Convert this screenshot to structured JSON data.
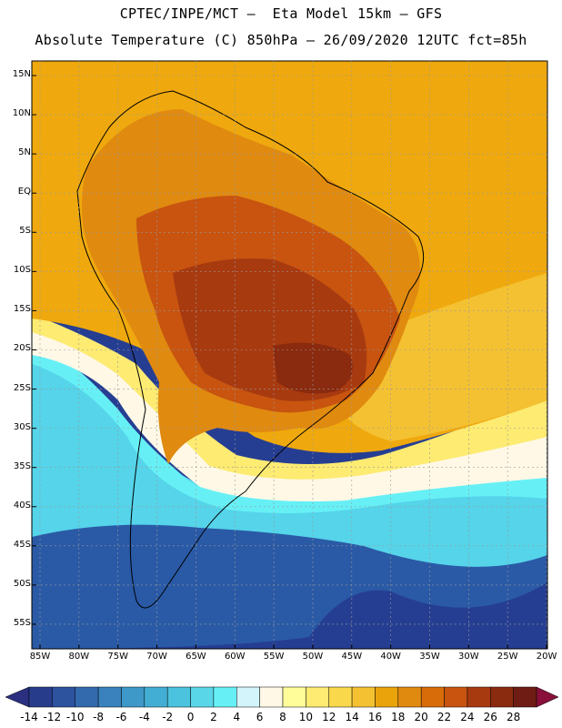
{
  "title_line1": "CPTEC/INPE/MCT –  Eta Model 15km – GFS",
  "title_line2": "Absolute Temperature (C) 850hPa – 26/09/2020 12UTC fct=85h",
  "lat_labels": [
    "15N",
    "10N",
    "5N",
    "EQ",
    "5S",
    "10S",
    "15S",
    "20S",
    "25S",
    "30S",
    "35S",
    "40S",
    "45S",
    "50S",
    "55S"
  ],
  "lon_labels": [
    "85W",
    "80W",
    "75W",
    "70W",
    "65W",
    "60W",
    "55W",
    "50W",
    "45W",
    "40W",
    "35W",
    "30W",
    "25W",
    "20W"
  ],
  "colorbar": {
    "labels": [
      "-14",
      "-12",
      "-10",
      "-8",
      "-6",
      "-4",
      "-2",
      "0",
      "2",
      "4",
      "6",
      "8",
      "10",
      "12",
      "14",
      "16",
      "18",
      "20",
      "22",
      "24",
      "26",
      "28"
    ],
    "colors": [
      "#283c8c",
      "#2d529e",
      "#336aad",
      "#3a82bd",
      "#3e98c8",
      "#42aed3",
      "#4bc3de",
      "#5ad6e9",
      "#66f0f6",
      "#d2f4fa",
      "#fff8e6",
      "#fffc9a",
      "#fdeb72",
      "#f9d84c",
      "#f4c132",
      "#eba30c",
      "#e08a10",
      "#d86c08",
      "#c85410",
      "#a83a10",
      "#8a2a0e",
      "#6e1c14"
    ],
    "under_color": "#2a2f80",
    "over_color": "#88103a"
  },
  "map_fill_colors": {
    "ocean_south": "#2a5aa6",
    "ocean_far_south": "#263e92",
    "cold_band": "#55d4ea",
    "cyan_band": "#66f0f6",
    "cream_band": "#fff8e6",
    "yellow_band": "#fdeb72",
    "north_ocean": "#efa90e",
    "south_atlantic_warm": "#f4c132",
    "land_warm": "#e08a10",
    "land_hot": "#c85410",
    "land_hotter": "#a83a10",
    "land_hottest": "#8a2a0e"
  }
}
